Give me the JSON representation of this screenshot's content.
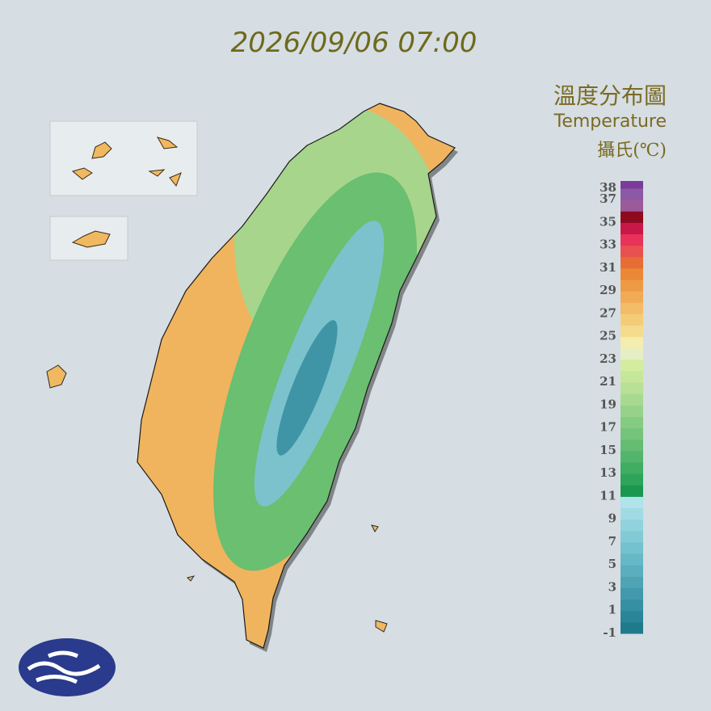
{
  "title": "2026/09/06 07:00",
  "legend": {
    "title": "溫度分布圖",
    "subtitle": "Temperature",
    "unit": "攝氏(℃)",
    "ticks": [
      38,
      37,
      35,
      33,
      31,
      29,
      27,
      25,
      23,
      21,
      19,
      17,
      15,
      13,
      11,
      9,
      7,
      5,
      3,
      1,
      -1
    ],
    "colors": [
      "#1f7a8c",
      "#2a8598",
      "#3690a3",
      "#4199ab",
      "#4ea4b5",
      "#5aaebe",
      "#67b8c7",
      "#74c1cf",
      "#82cad6",
      "#90d2dd",
      "#a0dbe4",
      "#b0e3ea",
      "#1a9850",
      "#2da45a",
      "#40ad62",
      "#52b56b",
      "#64bd73",
      "#75c47b",
      "#86cb82",
      "#97d28a",
      "#a8d990",
      "#b8e096",
      "#c6e69a",
      "#d3ec9e",
      "#e6efc4",
      "#f5ecb0",
      "#f5dc8c",
      "#f4cc78",
      "#f3bc66",
      "#f1ab55",
      "#ee9a45",
      "#ea8838",
      "#e66e35",
      "#e95050",
      "#e8325a",
      "#c8184a",
      "#8e0a1e",
      "#9b5a9a",
      "#8c5aa5",
      "#7c3a9a"
    ]
  }
}
